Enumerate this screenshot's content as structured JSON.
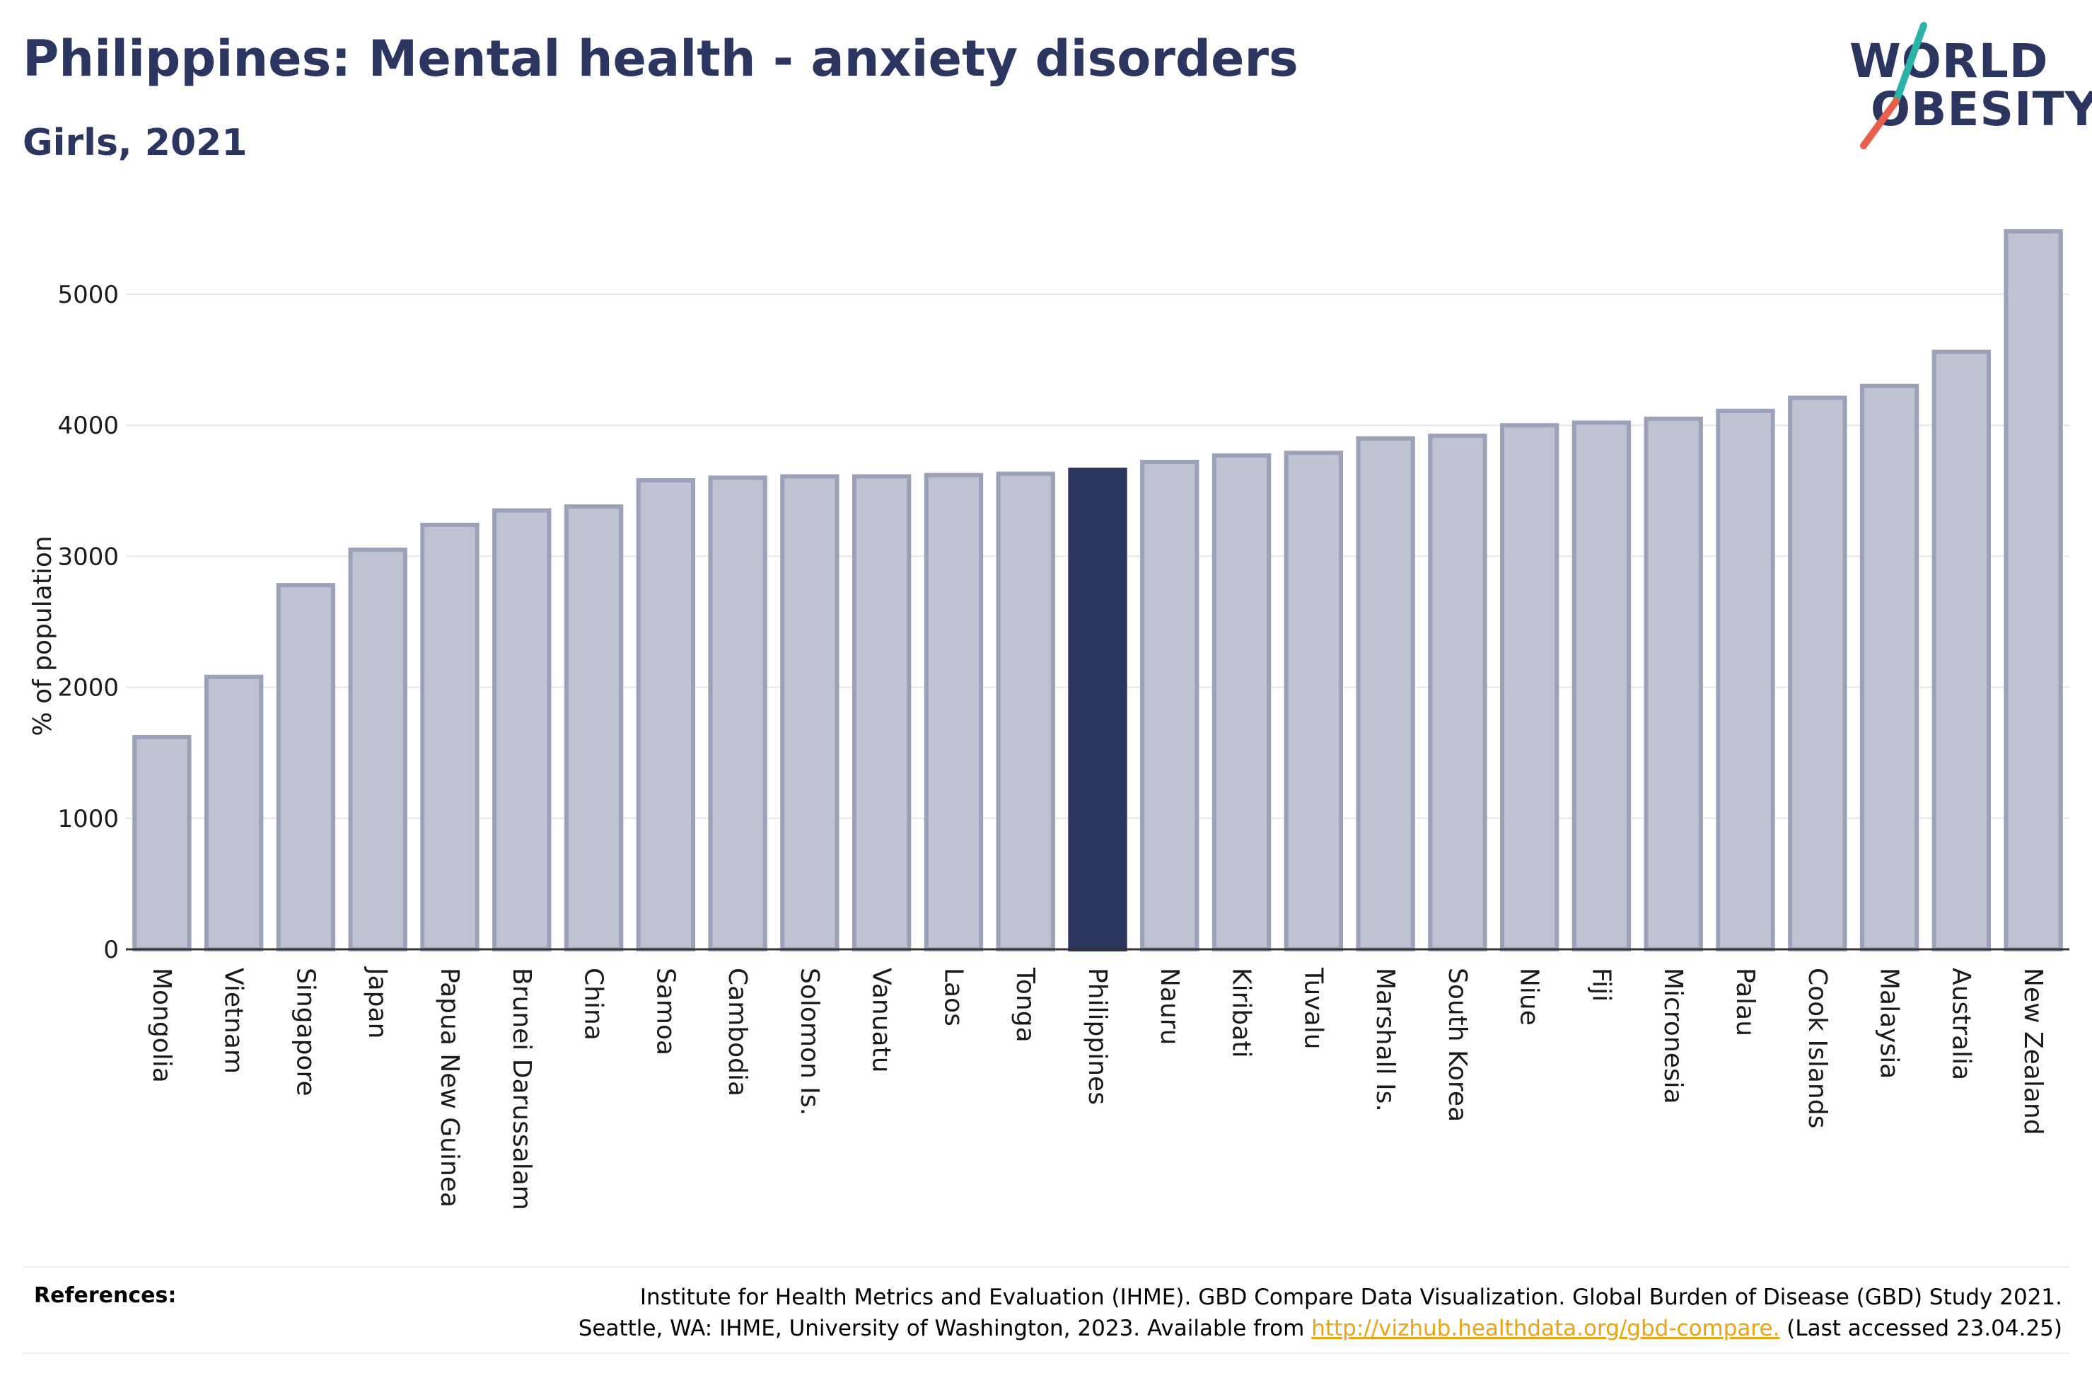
{
  "header": {
    "title": "Philippines: Mental health - anxiety disorders",
    "subtitle": "Girls, 2021"
  },
  "logo": {
    "line1": "WORLD",
    "line2": "OBESITY",
    "slash_colors": [
      "#2bb3a8",
      "#e8604c"
    ]
  },
  "chart_data": {
    "type": "bar",
    "title": "Philippines: Mental health - anxiety disorders",
    "subtitle": "Girls, 2021",
    "ylabel": "% of population",
    "xlabel": "",
    "ylim": [
      0,
      5500
    ],
    "yticks": [
      0,
      1000,
      2000,
      3000,
      4000,
      5000
    ],
    "grid": true,
    "highlight": "Philippines",
    "colors": {
      "bar": "#bfc3d1",
      "bar_edge": "#9aa1b8",
      "highlight": "#2b3660"
    },
    "categories": [
      "Mongolia",
      "Vietnam",
      "Singapore",
      "Japan",
      "Papua New Guinea",
      "Brunei Darussalam",
      "China",
      "Samoa",
      "Cambodia",
      "Solomon Is.",
      "Vanuatu",
      "Laos",
      "Tonga",
      "Philippines",
      "Nauru",
      "Kiribati",
      "Tuvalu",
      "Marshall Is.",
      "South Korea",
      "Niue",
      "Fiji",
      "Micronesia",
      "Palau",
      "Cook Islands",
      "Malaysia",
      "Australia",
      "New Zealand"
    ],
    "values": [
      1620,
      2080,
      2780,
      3050,
      3240,
      3350,
      3380,
      3580,
      3600,
      3610,
      3610,
      3620,
      3630,
      3660,
      3720,
      3770,
      3790,
      3900,
      3920,
      4000,
      4020,
      4050,
      4110,
      4210,
      4300,
      4560,
      5480
    ]
  },
  "references": {
    "label": "References:",
    "line1": "Institute for Health Metrics and Evaluation (IHME). GBD Compare Data Visualization. Global Burden of Disease (GBD) Study 2021.",
    "line2_prefix": "Seattle, WA: IHME, University of Washington, 2023. Available from ",
    "link": "http://vizhub.healthdata.org/gbd-compare.",
    "line2_suffix": " (Last accessed 23.04.25)"
  }
}
